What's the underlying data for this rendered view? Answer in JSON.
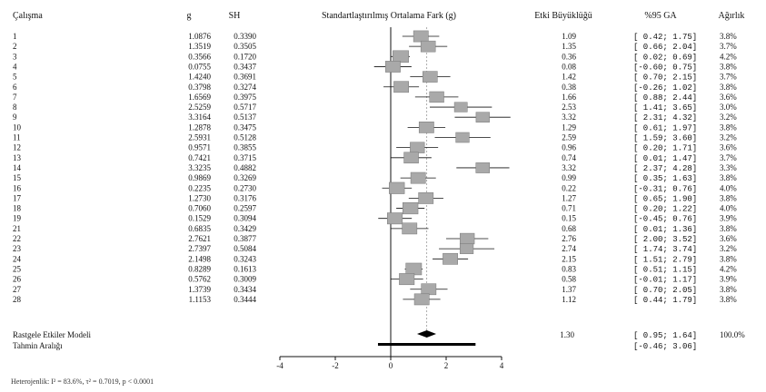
{
  "columns": {
    "study": "Çalışma",
    "g": "g",
    "se": "SH",
    "plot": "Standartlaştırılmış Ortalama Fark (g)",
    "effect": "Etki Büyüklüğü",
    "ci": "%95 GA",
    "weight": "Ağırlık"
  },
  "studies": [
    {
      "id": "1",
      "g": "1.0876",
      "se": "0.3390",
      "effect": "1.09",
      "ci": "[ 0.42; 1.75]",
      "weight": "3.8%"
    },
    {
      "id": "2",
      "g": "1.3519",
      "se": "0.3505",
      "effect": "1.35",
      "ci": "[ 0.66; 2.04]",
      "weight": "3.7%"
    },
    {
      "id": "3",
      "g": "0.3566",
      "se": "0.1720",
      "effect": "0.36",
      "ci": "[ 0.02; 0.69]",
      "weight": "4.2%"
    },
    {
      "id": "4",
      "g": "0.0755",
      "se": "0.3437",
      "effect": "0.08",
      "ci": "[-0.60; 0.75]",
      "weight": "3.8%"
    },
    {
      "id": "5",
      "g": "1.4240",
      "se": "0.3691",
      "effect": "1.42",
      "ci": "[ 0.70; 2.15]",
      "weight": "3.7%"
    },
    {
      "id": "6",
      "g": "0.3798",
      "se": "0.3274",
      "effect": "0.38",
      "ci": "[-0.26; 1.02]",
      "weight": "3.8%"
    },
    {
      "id": "7",
      "g": "1.6569",
      "se": "0.3975",
      "effect": "1.66",
      "ci": "[ 0.88; 2.44]",
      "weight": "3.6%"
    },
    {
      "id": "8",
      "g": "2.5259",
      "se": "0.5717",
      "effect": "2.53",
      "ci": "[ 1.41; 3.65]",
      "weight": "3.0%"
    },
    {
      "id": "9",
      "g": "3.3164",
      "se": "0.5137",
      "effect": "3.32",
      "ci": "[ 2.31; 4.32]",
      "weight": "3.2%"
    },
    {
      "id": "10",
      "g": "1.2878",
      "se": "0.3475",
      "effect": "1.29",
      "ci": "[ 0.61; 1.97]",
      "weight": "3.8%"
    },
    {
      "id": "11",
      "g": "2.5931",
      "se": "0.5128",
      "effect": "2.59",
      "ci": "[ 1.59; 3.60]",
      "weight": "3.2%"
    },
    {
      "id": "12",
      "g": "0.9571",
      "se": "0.3855",
      "effect": "0.96",
      "ci": "[ 0.20; 1.71]",
      "weight": "3.6%"
    },
    {
      "id": "13",
      "g": "0.7421",
      "se": "0.3715",
      "effect": "0.74",
      "ci": "[ 0.01; 1.47]",
      "weight": "3.7%"
    },
    {
      "id": "14",
      "g": "3.3235",
      "se": "0.4882",
      "effect": "3.32",
      "ci": "[ 2.37; 4.28]",
      "weight": "3.3%"
    },
    {
      "id": "15",
      "g": "0.9869",
      "se": "0.3269",
      "effect": "0.99",
      "ci": "[ 0.35; 1.63]",
      "weight": "3.8%"
    },
    {
      "id": "16",
      "g": "0.2235",
      "se": "0.2730",
      "effect": "0.22",
      "ci": "[-0.31; 0.76]",
      "weight": "4.0%"
    },
    {
      "id": "17",
      "g": "1.2730",
      "se": "0.3176",
      "effect": "1.27",
      "ci": "[ 0.65; 1.90]",
      "weight": "3.8%"
    },
    {
      "id": "18",
      "g": "0.7060",
      "se": "0.2597",
      "effect": "0.71",
      "ci": "[ 0.20; 1.22]",
      "weight": "4.0%"
    },
    {
      "id": "19",
      "g": "0.1529",
      "se": "0.3094",
      "effect": "0.15",
      "ci": "[-0.45; 0.76]",
      "weight": "3.9%"
    },
    {
      "id": "21",
      "g": "0.6835",
      "se": "0.3429",
      "effect": "0.68",
      "ci": "[ 0.01; 1.36]",
      "weight": "3.8%"
    },
    {
      "id": "22",
      "g": "2.7621",
      "se": "0.3877",
      "effect": "2.76",
      "ci": "[ 2.00; 3.52]",
      "weight": "3.6%"
    },
    {
      "id": "23",
      "g": "2.7397",
      "se": "0.5084",
      "effect": "2.74",
      "ci": "[ 1.74; 3.74]",
      "weight": "3.2%"
    },
    {
      "id": "24",
      "g": "2.1498",
      "se": "0.3243",
      "effect": "2.15",
      "ci": "[ 1.51; 2.79]",
      "weight": "3.8%"
    },
    {
      "id": "25",
      "g": "0.8289",
      "se": "0.1613",
      "effect": "0.83",
      "ci": "[ 0.51; 1.15]",
      "weight": "4.2%"
    },
    {
      "id": "26",
      "g": "0.5762",
      "se": "0.3009",
      "effect": "0.58",
      "ci": "[-0.01; 1.17]",
      "weight": "3.9%"
    },
    {
      "id": "27",
      "g": "1.3739",
      "se": "0.3434",
      "effect": "1.37",
      "ci": "[ 0.70; 2.05]",
      "weight": "3.8%"
    },
    {
      "id": "28",
      "g": "1.1153",
      "se": "0.3444",
      "effect": "1.12",
      "ci": "[ 0.44; 1.79]",
      "weight": "3.8%"
    }
  ],
  "summary": {
    "label": "Rastgele Etkiler Modeli",
    "effect": "1.30",
    "ci": "[ 0.95; 1.64]",
    "weight": "100.0%"
  },
  "prediction": {
    "label": "Tahmin Aralığı",
    "ci": "[-0.46; 3.06]"
  },
  "footnote": "Heterojenlik: I² = 83.6%, τ² = 0.7019, p < 0.0001",
  "chart_data": {
    "type": "forest",
    "xlabel": "Standartlaştırılmış Ortalama Fark (g)",
    "xlim": [
      -4,
      4
    ],
    "xticks": [
      -4,
      -2,
      0,
      2,
      4
    ],
    "x_tick_labels": [
      "-4",
      "-2",
      "0",
      "2",
      "4"
    ],
    "reference_line": 0,
    "studies": [
      "1",
      "2",
      "3",
      "4",
      "5",
      "6",
      "7",
      "8",
      "9",
      "10",
      "11",
      "12",
      "13",
      "14",
      "15",
      "16",
      "17",
      "18",
      "19",
      "21",
      "22",
      "23",
      "24",
      "25",
      "26",
      "27",
      "28"
    ],
    "effect": [
      1.09,
      1.35,
      0.36,
      0.08,
      1.42,
      0.38,
      1.66,
      2.53,
      3.32,
      1.29,
      2.59,
      0.96,
      0.74,
      3.32,
      0.99,
      0.22,
      1.27,
      0.71,
      0.15,
      0.68,
      2.76,
      2.74,
      2.15,
      0.83,
      0.58,
      1.37,
      1.12
    ],
    "ci_low": [
      0.42,
      0.66,
      0.02,
      -0.6,
      0.7,
      -0.26,
      0.88,
      1.41,
      2.31,
      0.61,
      1.59,
      0.2,
      0.01,
      2.37,
      0.35,
      -0.31,
      0.65,
      0.2,
      -0.45,
      0.01,
      2.0,
      1.74,
      1.51,
      0.51,
      -0.01,
      0.7,
      0.44
    ],
    "ci_high": [
      1.75,
      2.04,
      0.69,
      0.75,
      2.15,
      1.02,
      2.44,
      3.65,
      4.32,
      1.97,
      3.6,
      1.71,
      1.47,
      4.28,
      1.63,
      0.76,
      1.9,
      1.22,
      0.76,
      1.36,
      3.52,
      3.74,
      2.79,
      1.15,
      1.17,
      2.05,
      1.79
    ],
    "weight_pct": [
      3.8,
      3.7,
      4.2,
      3.8,
      3.7,
      3.8,
      3.6,
      3.0,
      3.2,
      3.8,
      3.2,
      3.6,
      3.7,
      3.3,
      3.8,
      4.0,
      3.8,
      4.0,
      3.9,
      3.8,
      3.6,
      3.2,
      3.8,
      4.2,
      3.9,
      3.8,
      3.8
    ],
    "pooled": {
      "effect": 1.3,
      "ci_low": 0.95,
      "ci_high": 1.64
    },
    "prediction_interval": {
      "low": -0.46,
      "high": 3.06
    },
    "colors": {
      "marker": "#a9a9a9",
      "line": "#111111",
      "pooled": "#000000",
      "ref_dashed": "#999999"
    }
  }
}
